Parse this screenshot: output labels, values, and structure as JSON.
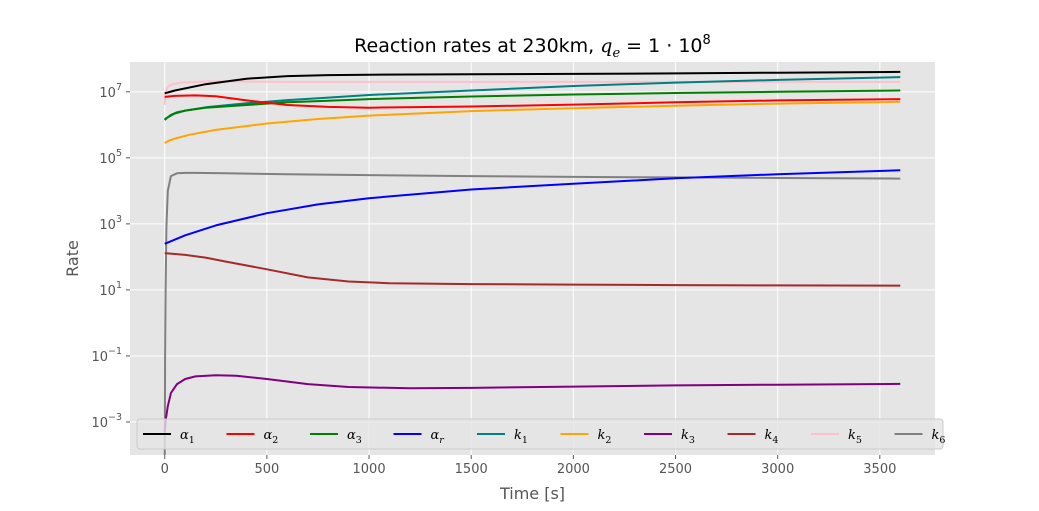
{
  "chart_data": {
    "type": "line",
    "title": "Reaction rates at 230km, q_e = 1 · 10^8",
    "title_parts": {
      "prefix": "Reaction rates at 230km, ",
      "var": "q",
      "var_sub": "e",
      "eq": " = 1 · 10",
      "exp": "8"
    },
    "xlabel": "Time [s]",
    "ylabel": "Rate",
    "xlim": [
      -170,
      3770
    ],
    "ylim": [
      0.0001,
      80000000
    ],
    "yscale": "log",
    "grid": true,
    "legend_position": "bottom",
    "x_ticks": [
      0,
      500,
      1000,
      1500,
      2000,
      2500,
      3000,
      3500
    ],
    "x_tick_labels": [
      "0",
      "500",
      "1000",
      "1500",
      "2000",
      "2500",
      "3000",
      "3500"
    ],
    "y_ticks": [
      0.001,
      0.1,
      10,
      1000,
      100000,
      10000000
    ],
    "y_tick_labels": [
      {
        "base": "10",
        "exp": "−3"
      },
      {
        "base": "10",
        "exp": "−1"
      },
      {
        "base": "10",
        "exp": "1"
      },
      {
        "base": "10",
        "exp": "3"
      },
      {
        "base": "10",
        "exp": "5"
      },
      {
        "base": "10",
        "exp": "7"
      }
    ],
    "series": [
      {
        "name": "α1",
        "base": "α",
        "sub": "1",
        "color": "#000000",
        "x": [
          0,
          50,
          200,
          400,
          600,
          800,
          1000,
          1500,
          2000,
          2500,
          3000,
          3600
        ],
        "y": [
          9000000,
          11000000,
          17000000,
          25000000,
          30000000,
          32000000,
          33000000,
          34000000,
          35000000,
          36000000,
          38000000,
          40000000
        ]
      },
      {
        "name": "α2",
        "base": "α",
        "sub": "2",
        "color": "#ff0000",
        "x": [
          0,
          50,
          150,
          250,
          400,
          600,
          800,
          1000,
          1500,
          2000,
          2500,
          3000,
          3600
        ],
        "y": [
          7000000,
          7500000,
          7800000,
          7300000,
          5500000,
          4000000,
          3500000,
          3300000,
          3600000,
          4100000,
          4800000,
          5500000,
          6000000
        ]
      },
      {
        "name": "α3",
        "base": "α",
        "sub": "3",
        "color": "#008000",
        "x": [
          0,
          10,
          30,
          60,
          100,
          200,
          400,
          600,
          800,
          1000,
          1500,
          2000,
          2500,
          3000,
          3600
        ],
        "y": [
          1400000,
          1600000,
          2000000,
          2400000,
          2700000,
          3300000,
          4000000,
          4800000,
          5400000,
          6000000,
          7200000,
          8300000,
          9200000,
          10000000,
          11000000
        ]
      },
      {
        "name": "αr",
        "base": "α",
        "sub": "r",
        "color": "#0000ff",
        "x": [
          0,
          100,
          250,
          500,
          750,
          1000,
          1500,
          2000,
          2500,
          3000,
          3600
        ],
        "y": [
          250,
          450,
          900,
          2100,
          3900,
          6000,
          11000,
          16500,
          24000,
          32000,
          42000
        ]
      },
      {
        "name": "k1",
        "base": "k",
        "sub": "1",
        "color": "#008080",
        "x": [
          0,
          50,
          100,
          200,
          400,
          600,
          800,
          1000,
          1500,
          2000,
          2500,
          3000,
          3600
        ],
        "y": [
          1500000,
          2200000,
          2700000,
          3400000,
          4500000,
          5600000,
          6700000,
          8000000,
          11000000,
          15000000,
          19000000,
          23000000,
          28000000
        ]
      },
      {
        "name": "k2",
        "base": "k",
        "sub": "2",
        "color": "#ffa500",
        "x": [
          0,
          20,
          60,
          120,
          250,
          500,
          750,
          1000,
          1500,
          2000,
          2500,
          3000,
          3600
        ],
        "y": [
          280000,
          330000,
          400000,
          500000,
          700000,
          1100000,
          1500000,
          1900000,
          2600000,
          3200000,
          3800000,
          4400000,
          5000000
        ]
      },
      {
        "name": "k3",
        "base": "k",
        "sub": "3",
        "color": "#800080",
        "x": [
          0,
          5,
          15,
          30,
          60,
          100,
          150,
          250,
          350,
          500,
          700,
          900,
          1200,
          1500,
          2000,
          2500,
          3000,
          3600
        ],
        "y": [
          0.0005,
          0.0012,
          0.003,
          0.0075,
          0.014,
          0.02,
          0.024,
          0.026,
          0.025,
          0.02,
          0.014,
          0.0115,
          0.0105,
          0.0108,
          0.0118,
          0.0128,
          0.0135,
          0.0142
        ]
      },
      {
        "name": "k4",
        "base": "k",
        "sub": "4",
        "color": "#a52a2a",
        "x": [
          0,
          100,
          200,
          300,
          500,
          700,
          900,
          1100,
          1500,
          2000,
          2500,
          3000,
          3600
        ],
        "y": [
          130,
          115,
          95,
          72,
          42,
          24,
          18,
          16,
          15,
          14.5,
          14,
          13.7,
          13.5
        ]
      },
      {
        "name": "k5",
        "base": "k",
        "sub": "5",
        "color": "#ffc0cb",
        "x": [
          0,
          3,
          8,
          20,
          40,
          80,
          150,
          250,
          400,
          600,
          1000,
          1500,
          2000,
          2500,
          3000,
          3600
        ],
        "y": [
          4000000,
          8000000,
          12000000,
          15000000,
          17000000,
          19000000,
          20000000,
          21000000,
          20500000,
          20000000,
          20000000,
          20000000,
          20000000,
          20000000,
          20000000,
          20000000
        ]
      },
      {
        "name": "k6",
        "base": "k",
        "sub": "6",
        "color": "#808080",
        "x": [
          0,
          1,
          2,
          4,
          8,
          15,
          30,
          60,
          100,
          150,
          300,
          600,
          1000,
          1500,
          2000,
          2500,
          3000,
          3600
        ],
        "y": [
          0.0001,
          0.001,
          0.1,
          10,
          800,
          10000,
          28000,
          34000,
          35000,
          35000,
          34000,
          32000,
          30000,
          28000,
          26500,
          25500,
          24500,
          23500
        ]
      }
    ]
  }
}
